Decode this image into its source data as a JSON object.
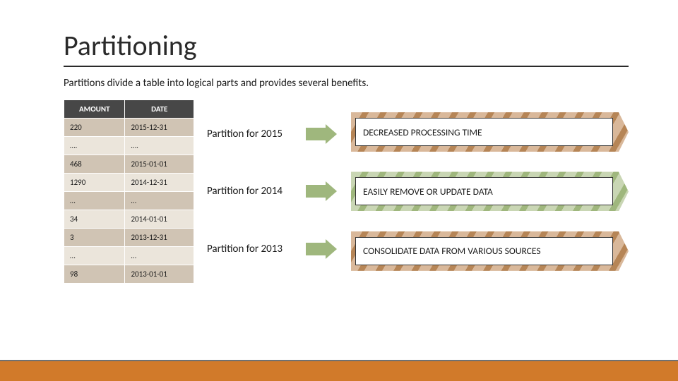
{
  "title": "Partitioning",
  "subtitle": "Partitions divide a table into logical parts and provides several benefits.",
  "table": {
    "columns": [
      "AMOUNT",
      "DATE"
    ],
    "rows": [
      [
        "220",
        "2015-12-31"
      ],
      [
        "….",
        "…."
      ],
      [
        "468",
        "2015-01-01"
      ],
      [
        "1290",
        "2014-12-31"
      ],
      [
        "…",
        "…"
      ],
      [
        "34",
        "2014-01-01"
      ],
      [
        "3",
        "2013-12-31"
      ],
      [
        "…",
        "…"
      ],
      [
        "98",
        "2013-01-01"
      ]
    ],
    "header_bg": "#474747",
    "header_fg": "#ffffff",
    "band_a": "#d0c4b4",
    "band_b": "#ebe5db"
  },
  "partitions": [
    {
      "label": "Partition for 2015"
    },
    {
      "label": "Partition for 2014"
    },
    {
      "label": "Partition for 2013"
    }
  ],
  "arrow": {
    "fill": "#9fb77d",
    "outline": "#7a9457"
  },
  "benefits": [
    {
      "text": "DECREASED PROCESSING TIME",
      "stripe_a": "#d9b89a",
      "stripe_b": "#b68556"
    },
    {
      "text": "EASILY REMOVE OR UPDATE DATA",
      "stripe_a": "#c9d6b4",
      "stripe_b": "#9fb77d"
    },
    {
      "text": "CONSOLIDATE DATA FROM VARIOUS SOURCES",
      "stripe_a": "#d9b89a",
      "stripe_b": "#b68556"
    }
  ],
  "footer": {
    "bar_color": "#d17a2a",
    "line_color": "#707070"
  }
}
